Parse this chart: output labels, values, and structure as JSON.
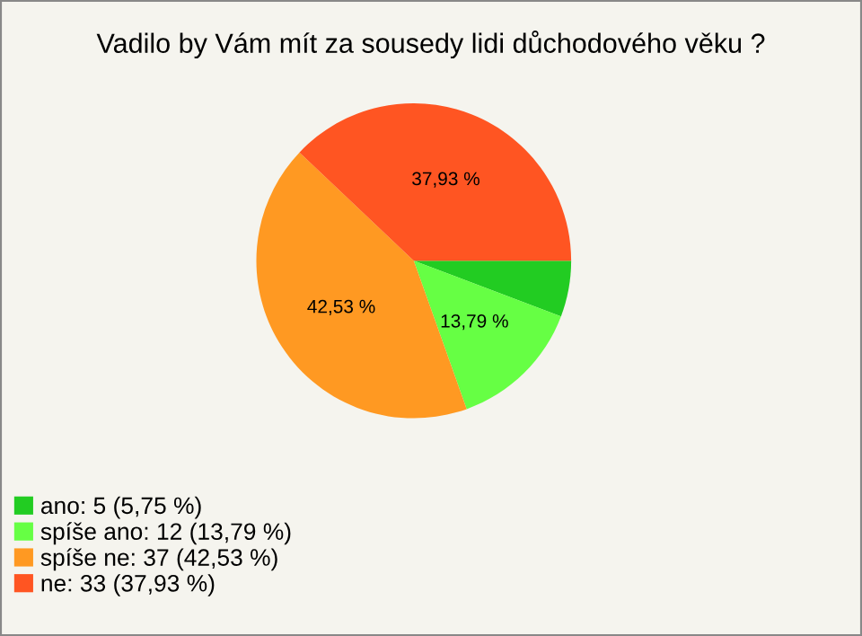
{
  "chart_data": {
    "type": "pie",
    "title": "Vadilo by Vám mít za sousedy lidi důchodového věku ?",
    "categories": [
      "ano: 5 (5,75 %)",
      "spíše ano: 12 (13,79 %)",
      "spíše ne: 37 (42,53 %)",
      "ne: 33 (37,93 %)"
    ],
    "values": [
      5.75,
      13.79,
      42.53,
      37.93
    ],
    "colors": [
      "#22cc22",
      "#66ff44",
      "#ff9922",
      "#ff5522"
    ],
    "value_labels": [
      null,
      "13,79 %",
      "42,53 %",
      "37,93 %"
    ],
    "legend": "bottom left"
  }
}
